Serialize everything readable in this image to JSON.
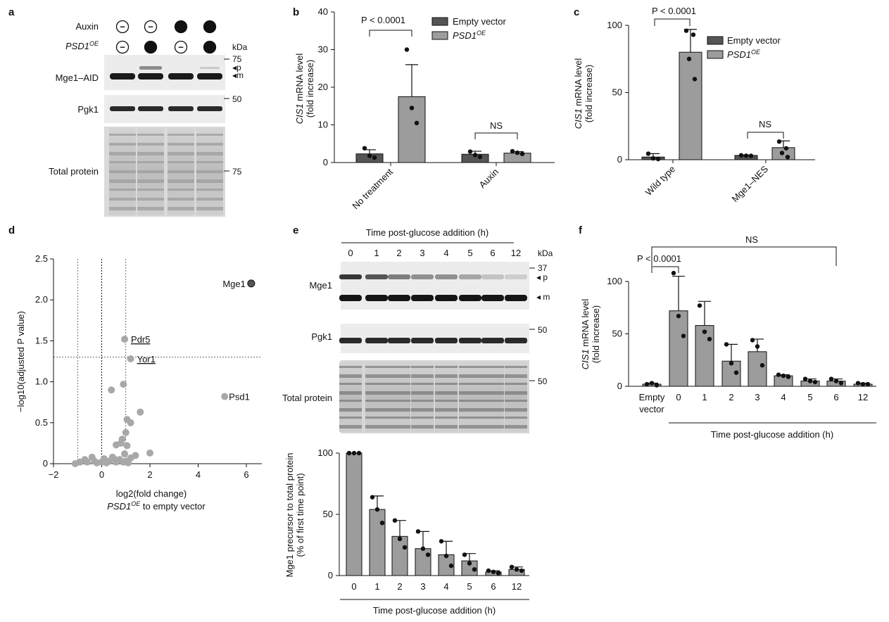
{
  "colors": {
    "dark": "#555555",
    "light": "#9c9c9c",
    "axis": "#111111",
    "pointLight": "#a8a8a8",
    "pointDark": "#555555"
  },
  "panels": [
    "a",
    "b",
    "c",
    "d",
    "e",
    "f"
  ],
  "panel_a": {
    "row1": "Auxin",
    "row2": "PSD1",
    "row2_sup": "OE",
    "signs1": [
      "−",
      "−",
      "+",
      "+"
    ],
    "signs2": [
      "−",
      "+",
      "−",
      "+"
    ],
    "kda": "kDa",
    "markers": [
      "75",
      "50",
      "75"
    ],
    "bands": [
      "p",
      "m"
    ],
    "labels": [
      "Mge1–AID",
      "Pgk1",
      "Total protein"
    ]
  },
  "panel_e_blot": {
    "header": "Time post-glucose addition (h)",
    "times": [
      "0",
      "1",
      "2",
      "3",
      "4",
      "5",
      "6",
      "12"
    ],
    "kda": "kDa",
    "markers": [
      "37",
      "50",
      "50"
    ],
    "bands": [
      "p",
      "m"
    ],
    "labels": [
      "Mge1",
      "Pgk1",
      "Total protein"
    ]
  },
  "chart_data": [
    {
      "id": "b",
      "type": "bar",
      "categories": [
        "No treatment",
        "Auxin"
      ],
      "series": [
        {
          "name": "Empty vector",
          "values": [
            2.3,
            2.2
          ],
          "err": [
            1.1,
            0.8
          ],
          "points": [
            [
              3.8,
              1.8,
              1.3
            ],
            [
              2.9,
              2.0,
              1.5
            ]
          ]
        },
        {
          "name": "PSD1",
          "name_sup": "OE",
          "values": [
            17.5,
            2.5
          ],
          "err": [
            8.5,
            0.4
          ],
          "points": [
            [
              30,
              14.5,
              10.5
            ],
            [
              3.0,
              2.6,
              2.3
            ]
          ]
        }
      ],
      "ylim": [
        0,
        40
      ],
      "yticks": [
        0,
        10,
        20,
        30,
        40
      ],
      "ylabel": "CIS1 mRNA level",
      "ylabel2": "(fold increase)",
      "annotations": [
        "P < 0.0001",
        "NS"
      ]
    },
    {
      "id": "c",
      "type": "bar",
      "categories": [
        "Wild type",
        "Mge1–NES"
      ],
      "series": [
        {
          "name": "Empty vector",
          "values": [
            2.0,
            3.2
          ],
          "err": [
            2.5,
            0.3
          ],
          "points": [
            [
              4.5,
              1.0,
              0.5
            ],
            [
              3.3,
              3.0,
              2.9
            ]
          ]
        },
        {
          "name": "PSD1",
          "name_sup": "OE",
          "values": [
            80,
            9
          ],
          "err": [
            17,
            5
          ],
          "points": [
            [
              96,
              93,
              75,
              60
            ],
            [
              13.5,
              8.5,
              5,
              2
            ]
          ]
        }
      ],
      "ylim": [
        0,
        100
      ],
      "yticks": [
        0,
        50,
        100
      ],
      "ylabel": "CIS1 mRNA level",
      "ylabel2": "(fold increase)",
      "annotations": [
        "P < 0.0001",
        "NS"
      ]
    },
    {
      "id": "d",
      "type": "scatter",
      "xlim": [
        -2,
        6.5
      ],
      "ylim": [
        0,
        2.5
      ],
      "xticks": [
        -2,
        0,
        2,
        4,
        6
      ],
      "yticks": [
        0,
        0.5,
        1.0,
        1.5,
        2.0,
        2.5
      ],
      "xlabel": "log2(fold change)",
      "xlabel2": "PSD1 to empty vector",
      "xlabel2_sup": "OE",
      "ylabel": "−log10(adjusted P value)",
      "threshold_y": 1.3,
      "threshold_x": [
        -1,
        1
      ],
      "labelled": [
        {
          "name": "Mge1",
          "x": 6.2,
          "y": 2.2
        },
        {
          "name": "Pdr5",
          "x": 0.95,
          "y": 1.52
        },
        {
          "name": "Yor1",
          "x": 1.2,
          "y": 1.28
        },
        {
          "name": "Psd1",
          "x": 5.1,
          "y": 0.82
        }
      ],
      "points": [
        [
          0.4,
          0.9
        ],
        [
          0.9,
          0.97
        ],
        [
          1.0,
          0.38
        ],
        [
          1.2,
          0.5
        ],
        [
          1.05,
          0.54
        ],
        [
          1.6,
          0.63
        ],
        [
          0.85,
          0.3
        ],
        [
          1.05,
          0.22
        ],
        [
          0.8,
          0.25
        ],
        [
          0.6,
          0.23
        ],
        [
          2.0,
          0.13
        ],
        [
          1.4,
          0.1
        ],
        [
          0.55,
          0.05
        ],
        [
          1.2,
          0.07
        ],
        [
          0.95,
          0.12
        ],
        [
          -0.9,
          0.02
        ],
        [
          -0.6,
          0.02
        ],
        [
          -0.3,
          0.03
        ],
        [
          0.0,
          0.02
        ],
        [
          0.3,
          0.03
        ],
        [
          0.6,
          0.02
        ],
        [
          0.9,
          0.02
        ],
        [
          -1.1,
          0
        ],
        [
          -0.7,
          0.05
        ],
        [
          -0.4,
          0.08
        ],
        [
          0.1,
          0.06
        ],
        [
          0.45,
          0.08
        ],
        [
          0.75,
          0.05
        ],
        [
          1.0,
          0.03
        ],
        [
          -0.2,
          0.01
        ],
        [
          0.2,
          0.01
        ],
        [
          1.1,
          0.01
        ]
      ]
    },
    {
      "id": "e",
      "type": "bar",
      "categories": [
        "0",
        "1",
        "2",
        "3",
        "4",
        "5",
        "6",
        "12"
      ],
      "values": [
        100,
        54,
        32,
        22,
        17,
        12,
        3,
        5
      ],
      "err": [
        0,
        11,
        13,
        14,
        11,
        6,
        1,
        2
      ],
      "points": [
        [
          100,
          100,
          100
        ],
        [
          64,
          54,
          43
        ],
        [
          45,
          30,
          23
        ],
        [
          36,
          22,
          17
        ],
        [
          28,
          16,
          8
        ],
        [
          17,
          10,
          5
        ],
        [
          4,
          3,
          2
        ],
        [
          7,
          5,
          4
        ]
      ],
      "ylim": [
        0,
        100
      ],
      "yticks": [
        0,
        50,
        100
      ],
      "ylabel": "Mge1 precursor to total protein",
      "ylabel2": "(% of first time point)",
      "xlabel": "Time post-glucose addition (h)"
    },
    {
      "id": "f",
      "type": "bar",
      "categories": [
        "Empty vector",
        "0",
        "1",
        "2",
        "3",
        "4",
        "5",
        "6",
        "12"
      ],
      "values": [
        2,
        72,
        58,
        24,
        33,
        10,
        5,
        5,
        2
      ],
      "err": [
        1,
        33,
        23,
        16,
        12,
        1,
        2,
        2,
        1
      ],
      "points": [
        [
          2,
          3,
          1
        ],
        [
          108,
          67,
          48
        ],
        [
          77,
          52,
          45
        ],
        [
          40,
          22,
          13
        ],
        [
          44,
          38,
          20
        ],
        [
          11,
          10,
          9
        ],
        [
          7,
          5,
          4
        ],
        [
          7,
          5,
          3
        ],
        [
          3,
          2,
          2
        ]
      ],
      "ylim": [
        0,
        100
      ],
      "yticks": [
        0,
        50,
        100
      ],
      "ylabel": "CIS1 mRNA level",
      "ylabel2": "(fold increase)",
      "xlabel": "Time post-glucose addition (h)",
      "annotations": [
        "NS",
        "P < 0.0001"
      ]
    }
  ]
}
